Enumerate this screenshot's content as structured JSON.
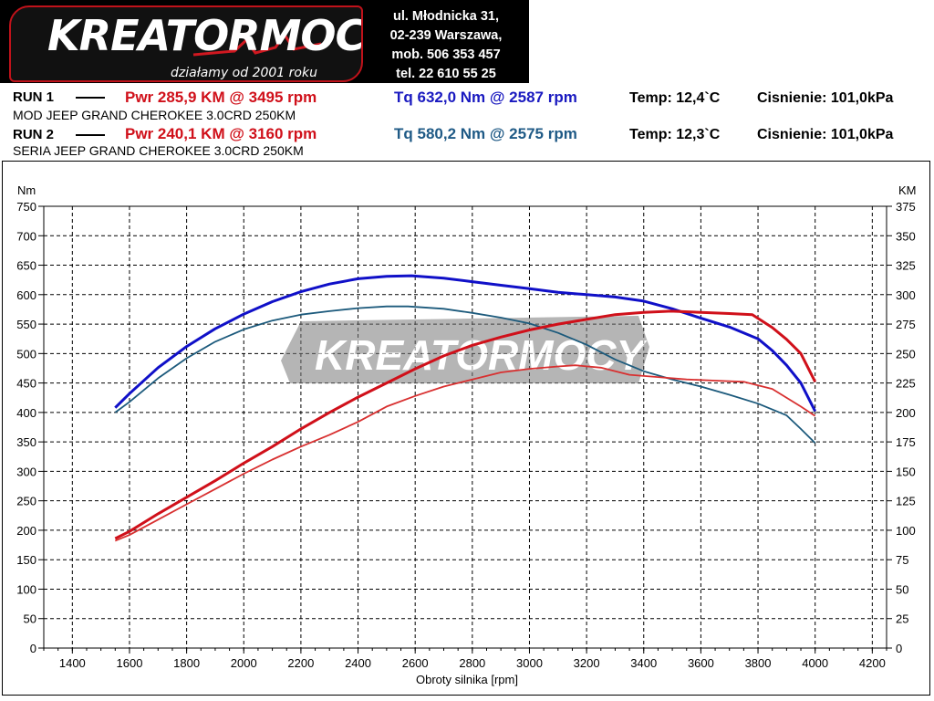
{
  "header": {
    "logo_text": "KREATORMOCY",
    "logo_tagline": "działamy od 2001 roku",
    "address_lines": [
      "ul. Młodnicka 31,",
      "02-239  Warszawa,",
      "mob.  506 353 457",
      "tel.  22 610 55 25"
    ]
  },
  "runs": [
    {
      "label": "RUN 1",
      "pwr": "Pwr  285,9 KM @ 3495 rpm",
      "tq": "Tq 632,0 Nm @ 2587 rpm",
      "temp": "Temp: 12,4`C",
      "pressure": "Cisnienie: 101,0kPa",
      "description": "MOD JEEP GRAND CHEROKEE 3.0CRD 250KM"
    },
    {
      "label": "RUN 2",
      "pwr": "Pwr  240,1 KM @ 3160 rpm",
      "tq": "Tq 580,2 Nm @ 2575 rpm",
      "temp": "Temp: 12,3`C",
      "pressure": "Cisnienie: 101,0kPa",
      "description": "SERIA JEEP GRAND CHEROKEE 3.0CRD 250KM"
    }
  ],
  "colors": {
    "run1_torque": "#1010c8",
    "run2_torque": "#1c5a7c",
    "run1_power": "#d0101a",
    "run2_power": "#d83030",
    "grid": "#000000"
  },
  "chart_data": {
    "type": "line",
    "title": "",
    "xlabel": "Obroty silnika [rpm]",
    "ylabel_left": "Nm",
    "ylabel_right": "KM",
    "xlim": [
      1300,
      4250
    ],
    "ylim_left": [
      0,
      750
    ],
    "ylim_right": [
      0,
      375
    ],
    "x_ticks": [
      1400,
      1600,
      1800,
      2000,
      2200,
      2400,
      2600,
      2800,
      3000,
      3200,
      3400,
      3600,
      3800,
      4000,
      4200
    ],
    "y_ticks_left": [
      0,
      50,
      100,
      150,
      200,
      250,
      300,
      350,
      400,
      450,
      500,
      550,
      600,
      650,
      700,
      750
    ],
    "y_ticks_right": [
      0,
      25,
      50,
      75,
      100,
      125,
      150,
      175,
      200,
      225,
      250,
      275,
      300,
      325,
      350,
      375
    ],
    "grid": true,
    "series": [
      {
        "name": "RUN 1",
        "quantity": "torque",
        "axis": "left",
        "points": [
          [
            1550,
            408
          ],
          [
            1600,
            432
          ],
          [
            1700,
            476
          ],
          [
            1800,
            512
          ],
          [
            1900,
            542
          ],
          [
            2000,
            567
          ],
          [
            2100,
            588
          ],
          [
            2200,
            605
          ],
          [
            2300,
            618
          ],
          [
            2400,
            627
          ],
          [
            2500,
            631
          ],
          [
            2587,
            632
          ],
          [
            2700,
            628
          ],
          [
            2800,
            622
          ],
          [
            2900,
            616
          ],
          [
            3000,
            610
          ],
          [
            3100,
            604
          ],
          [
            3200,
            600
          ],
          [
            3300,
            596
          ],
          [
            3400,
            589
          ],
          [
            3500,
            576
          ],
          [
            3600,
            560
          ],
          [
            3700,
            545
          ],
          [
            3800,
            525
          ],
          [
            3850,
            505
          ],
          [
            3900,
            480
          ],
          [
            3950,
            450
          ],
          [
            4000,
            402
          ]
        ]
      },
      {
        "name": "RUN 2",
        "quantity": "torque",
        "axis": "left",
        "points": [
          [
            1550,
            400
          ],
          [
            1600,
            418
          ],
          [
            1700,
            458
          ],
          [
            1800,
            492
          ],
          [
            1900,
            520
          ],
          [
            2000,
            541
          ],
          [
            2100,
            556
          ],
          [
            2200,
            566
          ],
          [
            2300,
            572
          ],
          [
            2400,
            577
          ],
          [
            2500,
            580
          ],
          [
            2575,
            580
          ],
          [
            2700,
            576
          ],
          [
            2800,
            569
          ],
          [
            2900,
            561
          ],
          [
            3000,
            551
          ],
          [
            3100,
            535
          ],
          [
            3200,
            515
          ],
          [
            3300,
            490
          ],
          [
            3400,
            470
          ],
          [
            3500,
            456
          ],
          [
            3600,
            444
          ],
          [
            3700,
            430
          ],
          [
            3800,
            415
          ],
          [
            3900,
            395
          ],
          [
            3950,
            372
          ],
          [
            4000,
            348
          ]
        ]
      },
      {
        "name": "RUN 1",
        "quantity": "power",
        "axis": "right",
        "points": [
          [
            1550,
            93
          ],
          [
            1600,
            99
          ],
          [
            1700,
            114
          ],
          [
            1800,
            128
          ],
          [
            1900,
            142
          ],
          [
            2000,
            157
          ],
          [
            2100,
            171
          ],
          [
            2200,
            186
          ],
          [
            2300,
            200
          ],
          [
            2400,
            213
          ],
          [
            2500,
            225
          ],
          [
            2600,
            237
          ],
          [
            2700,
            248
          ],
          [
            2800,
            257
          ],
          [
            2900,
            264
          ],
          [
            3000,
            270
          ],
          [
            3100,
            275
          ],
          [
            3200,
            279
          ],
          [
            3300,
            283
          ],
          [
            3400,
            285
          ],
          [
            3495,
            286
          ],
          [
            3600,
            285
          ],
          [
            3700,
            284
          ],
          [
            3780,
            283
          ],
          [
            3850,
            272
          ],
          [
            3900,
            262
          ],
          [
            3950,
            250
          ],
          [
            4000,
            226
          ]
        ]
      },
      {
        "name": "RUN 2",
        "quantity": "power",
        "axis": "right",
        "points": [
          [
            1550,
            91
          ],
          [
            1600,
            96
          ],
          [
            1700,
            109
          ],
          [
            1800,
            122
          ],
          [
            1900,
            135
          ],
          [
            2000,
            148
          ],
          [
            2100,
            160
          ],
          [
            2200,
            171
          ],
          [
            2300,
            181
          ],
          [
            2400,
            192
          ],
          [
            2500,
            205
          ],
          [
            2600,
            214
          ],
          [
            2700,
            222
          ],
          [
            2800,
            228
          ],
          [
            2900,
            234
          ],
          [
            3000,
            237
          ],
          [
            3100,
            239
          ],
          [
            3160,
            240
          ],
          [
            3250,
            238
          ],
          [
            3350,
            232
          ],
          [
            3450,
            230
          ],
          [
            3550,
            228
          ],
          [
            3650,
            227
          ],
          [
            3750,
            226
          ],
          [
            3850,
            220
          ],
          [
            3950,
            205
          ],
          [
            4000,
            197
          ]
        ]
      }
    ]
  }
}
